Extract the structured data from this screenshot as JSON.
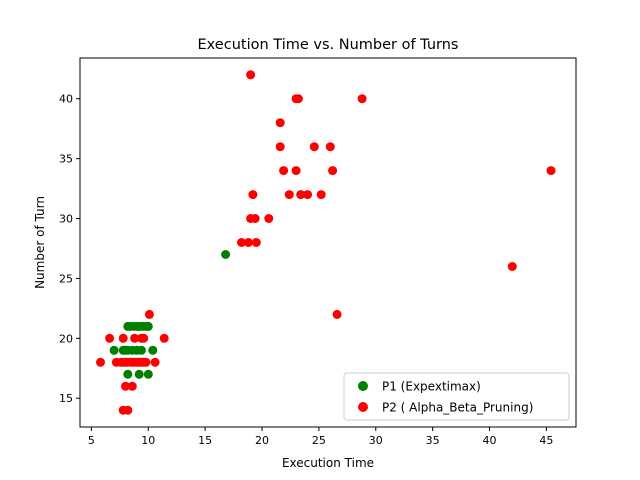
{
  "chart_data": {
    "type": "scatter",
    "title": "Execution Time vs. Number of Turns",
    "xlabel": "Execution Time",
    "ylabel": "Number of Turn",
    "xlim": [
      4.0,
      47.6
    ],
    "ylim": [
      12.6,
      43.4
    ],
    "xticks": [
      5,
      10,
      15,
      20,
      25,
      30,
      35,
      40,
      45
    ],
    "yticks": [
      15,
      20,
      25,
      30,
      35,
      40
    ],
    "grid": false,
    "legend_position": "lower-right",
    "series": [
      {
        "name": "P1 (Expextimax)",
        "color": "#008000",
        "x": [
          16.8,
          7.0,
          8.0,
          8.2,
          8.4,
          8.7,
          9.0,
          9.2,
          9.5,
          9.8,
          10.0,
          7.8,
          8.2,
          8.6,
          9.0,
          9.4,
          10.4,
          7.6,
          8.0,
          8.6,
          9.2,
          9.6,
          8.2,
          9.2,
          10.0
        ],
        "y": [
          27,
          19,
          19,
          21,
          21,
          21,
          21,
          21,
          21,
          21,
          21,
          19,
          19,
          19,
          19,
          19,
          19,
          18,
          18,
          18,
          18,
          18,
          17,
          17,
          17
        ]
      },
      {
        "name": "P2 ( Alpha_Beta_Pruning)",
        "color": "#ff0000",
        "x": [
          19.0,
          23.2,
          28.8,
          21.6,
          24.6,
          26.0,
          21.6,
          23.0,
          26.2,
          21.9,
          19.2,
          22.4,
          23.4,
          24.0,
          25.2,
          19.0,
          19.4,
          20.6,
          18.2,
          18.8,
          19.5,
          45.4,
          42.0,
          26.6,
          23.0,
          5.8,
          6.6,
          7.2,
          7.8,
          8.1,
          8.4,
          8.8,
          9.0,
          9.4,
          9.8,
          10.1,
          10.6,
          11.4,
          7.8,
          8.8,
          9.4,
          9.6,
          8.0,
          8.6,
          7.8,
          8.2
        ],
        "y": [
          42,
          40,
          40,
          38,
          36,
          36,
          36,
          34,
          34,
          34,
          32,
          32,
          32,
          32,
          32,
          30,
          30,
          30,
          28,
          28,
          28,
          34,
          26,
          22,
          40,
          18,
          20,
          18,
          18,
          18,
          18,
          18,
          18,
          18,
          18,
          22,
          18,
          20,
          20,
          20,
          20,
          20,
          16,
          16,
          14,
          14
        ]
      }
    ]
  }
}
